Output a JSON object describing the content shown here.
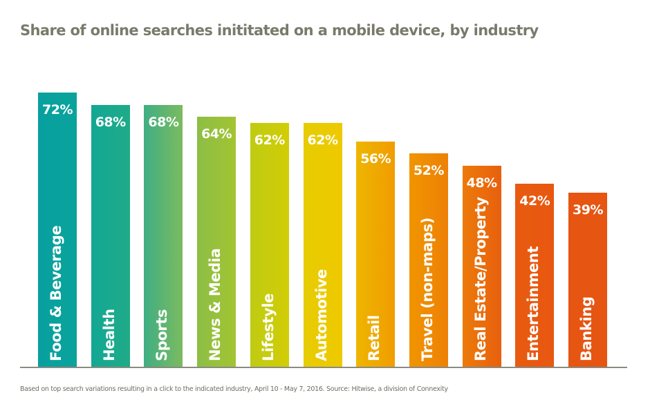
{
  "chart_data": {
    "type": "bar",
    "title": "Share of online searches inititated on a mobile device, by industry",
    "categories": [
      "Food & Beverage",
      "Health",
      "Sports",
      "News & Media",
      "Lifestyle",
      "Automotive",
      "Retail",
      "Travel (non-maps)",
      "Real Estate/Property",
      "Entertainment",
      "Banking"
    ],
    "values": [
      72,
      68,
      68,
      64,
      62,
      62,
      56,
      52,
      48,
      42,
      39
    ],
    "value_labels": [
      "72%",
      "68%",
      "68%",
      "64%",
      "62%",
      "62%",
      "56%",
      "52%",
      "48%",
      "42%",
      "39%"
    ],
    "colors": [
      [
        "#07a09f",
        "#0aa39c"
      ],
      [
        "#12a794",
        "#20ab88"
      ],
      [
        "#3fae84",
        "#7bbb5f"
      ],
      [
        "#8cbe45",
        "#a3c432"
      ],
      [
        "#bfcb12",
        "#d2cd06"
      ],
      [
        "#e6cc00",
        "#efc900"
      ],
      [
        "#eeb600",
        "#f09c00"
      ],
      [
        "#f09500",
        "#ee8006"
      ],
      [
        "#ec7a0a",
        "#e8600e"
      ],
      [
        "#e85b10",
        "#e85710"
      ],
      [
        "#e65512",
        "#e65512"
      ]
    ],
    "footnote": "Based on top search variations resulting in a click to the indicated industry, April 10 - May 7, 2016. Source: Hitwise, a division of Connexity",
    "grid": false,
    "legend": "none"
  }
}
